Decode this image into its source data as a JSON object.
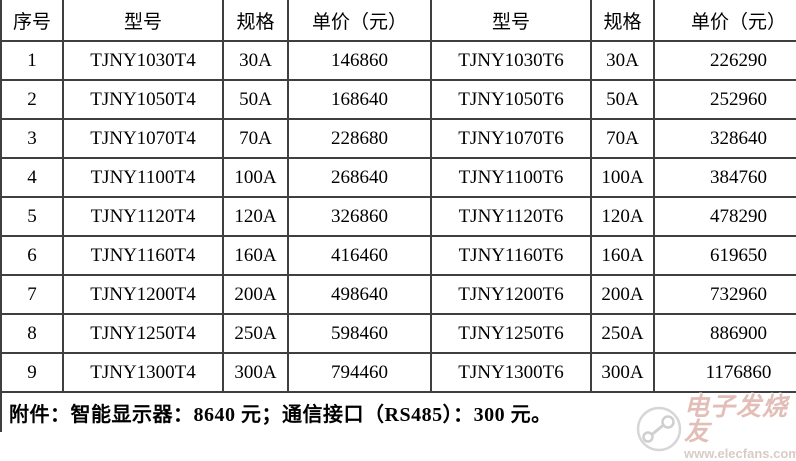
{
  "table": {
    "headers": [
      "序号",
      "型号",
      "规格",
      "单价（元）",
      "型号",
      "规格",
      "单价（元）"
    ],
    "rows": [
      [
        "1",
        "TJNY1030T4",
        "30A",
        "146860",
        "TJNY1030T6",
        "30A",
        "226290"
      ],
      [
        "2",
        "TJNY1050T4",
        "50A",
        "168640",
        "TJNY1050T6",
        "50A",
        "252960"
      ],
      [
        "3",
        "TJNY1070T4",
        "70A",
        "228680",
        "TJNY1070T6",
        "70A",
        "328640"
      ],
      [
        "4",
        "TJNY1100T4",
        "100A",
        "268640",
        "TJNY1100T6",
        "100A",
        "384760"
      ],
      [
        "5",
        "TJNY1120T4",
        "120A",
        "326860",
        "TJNY1120T6",
        "120A",
        "478290"
      ],
      [
        "6",
        "TJNY1160T4",
        "160A",
        "416460",
        "TJNY1160T6",
        "160A",
        "619650"
      ],
      [
        "7",
        "TJNY1200T4",
        "200A",
        "498640",
        "TJNY1200T6",
        "200A",
        "732960"
      ],
      [
        "8",
        "TJNY1250T4",
        "250A",
        "598460",
        "TJNY1250T6",
        "250A",
        "886900"
      ],
      [
        "9",
        "TJNY1300T4",
        "300A",
        "794460",
        "TJNY1300T6",
        "300A",
        "1176860"
      ]
    ]
  },
  "footer": {
    "note": "附件：智能显示器：8640 元；通信接口（RS485）：300 元。"
  },
  "watermark": {
    "site_name": "电子发烧友",
    "site_url": "www.elecfans.com",
    "text_color": "#e3beb8",
    "logo_ring_color": "#d6d6d6"
  },
  "colors": {
    "border": "#3f3f3f",
    "background": "#ffffff",
    "text": "#000000"
  }
}
